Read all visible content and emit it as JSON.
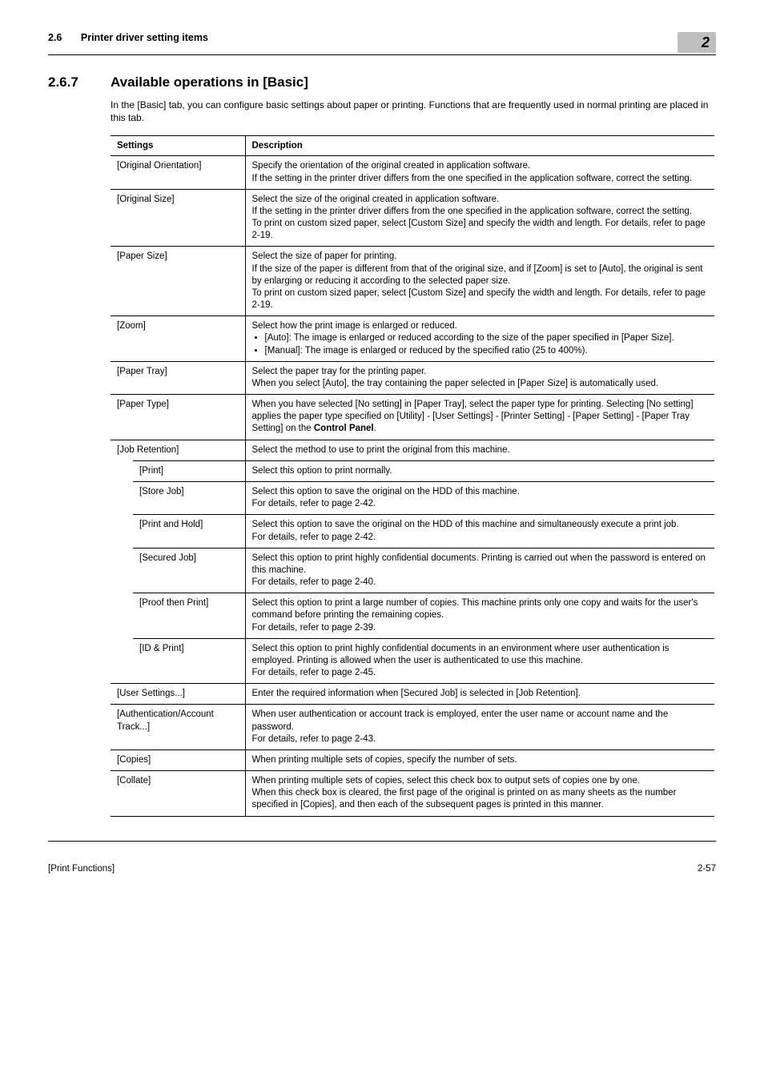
{
  "header": {
    "section_num": "2.6",
    "section_title": "Printer driver setting items",
    "badge": "2"
  },
  "heading": {
    "number": "2.6.7",
    "title": "Available operations in [Basic]"
  },
  "intro": "In the [Basic] tab, you can configure basic settings about paper or printing. Functions that are frequently used in normal printing are placed in this tab.",
  "columns": {
    "settings": "Settings",
    "description": "Description"
  },
  "rows": {
    "original_orientation": {
      "label": "[Original Orientation]",
      "desc": "Specify the orientation of the original created in application software.\nIf the setting in the printer driver differs from the one specified in the application software, correct the setting."
    },
    "original_size": {
      "label": "[Original Size]",
      "desc": "Select the size of the original created in application software.\nIf the setting in the printer driver differs from the one specified in the application software, correct the setting.\nTo print on custom sized paper, select [Custom Size] and specify the width and length. For details, refer to page 2-19."
    },
    "paper_size": {
      "label": "[Paper Size]",
      "desc": "Select the size of paper for printing.\nIf the size of the paper is different from that of the original size, and if [Zoom] is set to [Auto], the original is sent by enlarging or reducing it according to the selected paper size.\nTo print on custom sized paper, select [Custom Size] and specify the width and length. For details, refer to page 2-19."
    },
    "zoom": {
      "label": "[Zoom]",
      "lead": "Select how the print image is enlarged or reduced.",
      "b1": "[Auto]: The image is enlarged or reduced according to the size of the paper specified in [Paper Size].",
      "b2": "[Manual]: The image is enlarged or reduced by the specified ratio (25 to 400%)."
    },
    "paper_tray": {
      "label": "[Paper Tray]",
      "desc": "Select the paper tray for the printing paper.\nWhen you select [Auto], the tray containing the paper selected in [Paper Size] is automatically used."
    },
    "paper_type": {
      "label": "[Paper Type]",
      "d1": "When you have selected [No setting] in [Paper Tray], select the paper type for printing. Selecting [No setting] applies the paper type specified on [Utility] - [User Settings] - [Printer Setting] - [Paper Setting] - [Paper Tray Setting] on the ",
      "d2": "Control Panel",
      "d3": "."
    },
    "job_retention": {
      "label": "[Job Retention]",
      "desc": "Select the method to use to print the original from this machine."
    },
    "print": {
      "label": "[Print]",
      "desc": "Select this option to print normally."
    },
    "store_job": {
      "label": "[Store Job]",
      "desc": "Select this option to save the original on the HDD of this machine.\nFor details, refer to page 2-42."
    },
    "print_and_hold": {
      "label": "[Print and Hold]",
      "desc": "Select this option to save the original on the HDD of this machine and simultaneously execute a print job.\nFor details, refer to page 2-42."
    },
    "secured_job": {
      "label": "[Secured Job]",
      "desc": "Select this option to print highly confidential documents. Printing is carried out when the password is entered on this machine.\nFor details, refer to page 2-40."
    },
    "proof_then_print": {
      "label": "[Proof then Print]",
      "desc": "Select this option to print a large number of copies. This machine prints only one copy and waits for the user's command before printing the remaining copies.\nFor details, refer to page 2-39."
    },
    "id_print": {
      "label": "[ID & Print]",
      "desc": "Select this option to print highly confidential documents in an environment where user authentication is employed. Printing is allowed when the user is authenticated to use this machine.\nFor details, refer to page 2-45."
    },
    "user_settings": {
      "label": "[User Settings...]",
      "desc": "Enter the required information when [Secured Job] is selected in [Job Retention]."
    },
    "auth_account": {
      "label": "[Authentication/Account Track...]",
      "desc": "When user authentication or account track is employed, enter the user name or account name and the password.\nFor details, refer to page 2-43."
    },
    "copies": {
      "label": "[Copies]",
      "desc": "When printing multiple sets of copies, specify the number of sets."
    },
    "collate": {
      "label": "[Collate]",
      "desc": "When printing multiple sets of copies, select this check box to output sets of copies one by one.\nWhen this check box is cleared, the first page of the original is printed on as many sheets as the number specified in [Copies], and then each of the subsequent pages is printed in this manner."
    }
  },
  "footer": {
    "left": "[Print Functions]",
    "right": "2-57"
  }
}
